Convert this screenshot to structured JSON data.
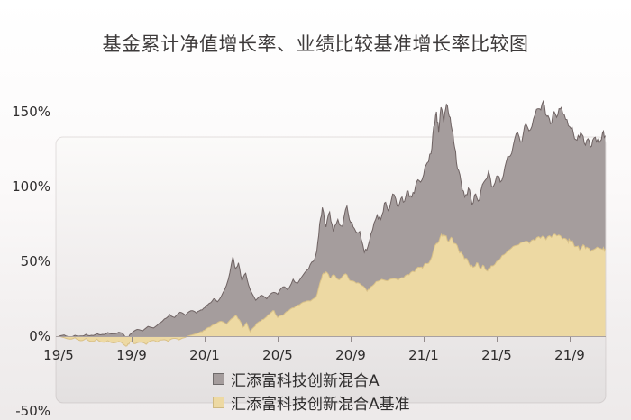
{
  "chart_data": {
    "type": "area",
    "title": "基金累计净值增长率、业绩比较基准增长率比较图",
    "legend_position": "bottom",
    "grid": false,
    "x_axis": {
      "unit": "year/month",
      "start": "2019/5",
      "end": "2021/11",
      "ticks": [
        {
          "m": 0,
          "label": "19/5"
        },
        {
          "m": 4,
          "label": "19/9"
        },
        {
          "m": 8,
          "label": "20/1"
        },
        {
          "m": 12,
          "label": "20/5"
        },
        {
          "m": 16,
          "label": "20/9"
        },
        {
          "m": 20,
          "label": "21/1"
        },
        {
          "m": 24,
          "label": "21/5"
        },
        {
          "m": 28,
          "label": "21/9"
        }
      ]
    },
    "y_axis": {
      "unit": "%",
      "range": [
        -50,
        160
      ],
      "ticks": [
        {
          "v": 150,
          "label": "150%"
        },
        {
          "v": 100,
          "label": "100%"
        },
        {
          "v": 50,
          "label": "50%"
        },
        {
          "v": 0,
          "label": "0%"
        },
        {
          "v": -50,
          "label": "-50%"
        }
      ]
    },
    "series": [
      {
        "name": "汇添富科技创新混合A",
        "color": "#a59d9d",
        "stroke": "#6f6363",
        "points": [
          [
            0,
            0
          ],
          [
            0.3,
            0.8
          ],
          [
            0.6,
            -0.6
          ],
          [
            0.9,
            0.6
          ],
          [
            1.2,
            0.2
          ],
          [
            1.5,
            1.2
          ],
          [
            1.8,
            0.6
          ],
          [
            2.1,
            1.8
          ],
          [
            2.4,
            1.2
          ],
          [
            2.7,
            2.4
          ],
          [
            3.0,
            1.6
          ],
          [
            3.3,
            2.6
          ],
          [
            3.55,
            1.2
          ],
          [
            3.75,
            -1.5
          ],
          [
            3.9,
            1.0
          ],
          [
            4.0,
            2.0
          ],
          [
            4.3,
            4.5
          ],
          [
            4.6,
            3.5
          ],
          [
            4.9,
            6.5
          ],
          [
            5.2,
            5.5
          ],
          [
            5.5,
            8.5
          ],
          [
            5.8,
            11.5
          ],
          [
            6.1,
            14.5
          ],
          [
            6.35,
            12.5
          ],
          [
            6.65,
            16.0
          ],
          [
            6.95,
            14.0
          ],
          [
            7.25,
            17.0
          ],
          [
            7.55,
            15.5
          ],
          [
            7.8,
            17.5
          ],
          [
            8.0,
            19.0
          ],
          [
            8.25,
            22.0
          ],
          [
            8.5,
            25.0
          ],
          [
            8.7,
            23.0
          ],
          [
            9.0,
            29.0
          ],
          [
            9.3,
            38.0
          ],
          [
            9.55,
            53.0
          ],
          [
            9.7,
            45.0
          ],
          [
            9.85,
            49.0
          ],
          [
            10.05,
            37.0
          ],
          [
            10.25,
            42.0
          ],
          [
            10.5,
            31.0
          ],
          [
            10.8,
            24.0
          ],
          [
            11.1,
            27.5
          ],
          [
            11.4,
            25.0
          ],
          [
            11.7,
            29.0
          ],
          [
            12.0,
            28.0
          ],
          [
            12.3,
            33.0
          ],
          [
            12.55,
            31.0
          ],
          [
            12.85,
            38.0
          ],
          [
            13.1,
            35.5
          ],
          [
            13.4,
            41.0
          ],
          [
            13.7,
            45.0
          ],
          [
            13.95,
            50.0
          ],
          [
            14.15,
            57.0
          ],
          [
            14.3,
            75.0
          ],
          [
            14.45,
            86.0
          ],
          [
            14.65,
            73.0
          ],
          [
            14.85,
            83.0
          ],
          [
            15.05,
            70.0
          ],
          [
            15.3,
            78.0
          ],
          [
            15.55,
            73.5
          ],
          [
            15.8,
            87.0
          ],
          [
            16.0,
            76.0
          ],
          [
            16.2,
            72.0
          ],
          [
            16.5,
            70.0
          ],
          [
            16.75,
            56.0
          ],
          [
            16.95,
            60.0
          ],
          [
            17.2,
            71.0
          ],
          [
            17.45,
            81.0
          ],
          [
            17.65,
            78.0
          ],
          [
            17.85,
            89.0
          ],
          [
            18.05,
            84.0
          ],
          [
            18.3,
            95.0
          ],
          [
            18.55,
            87.0
          ],
          [
            18.75,
            92.0
          ],
          [
            18.95,
            90.0
          ],
          [
            19.15,
            97.0
          ],
          [
            19.35,
            93.0
          ],
          [
            19.55,
            100.0
          ],
          [
            19.75,
            104.0
          ],
          [
            20.0,
            108.0
          ],
          [
            20.2,
            116.0
          ],
          [
            20.4,
            122.0
          ],
          [
            20.55,
            140.0
          ],
          [
            20.7,
            150.0
          ],
          [
            20.82,
            136.0
          ],
          [
            20.95,
            153.0
          ],
          [
            21.1,
            143.0
          ],
          [
            21.25,
            155.0
          ],
          [
            21.4,
            147.0
          ],
          [
            21.55,
            138.0
          ],
          [
            21.7,
            126.0
          ],
          [
            21.85,
            112.0
          ],
          [
            22.05,
            103.0
          ],
          [
            22.25,
            93.0
          ],
          [
            22.45,
            99.0
          ],
          [
            22.65,
            88.0
          ],
          [
            22.85,
            95.0
          ],
          [
            23.05,
            91.0
          ],
          [
            23.3,
            103.0
          ],
          [
            23.55,
            110.0
          ],
          [
            23.72,
            100.0
          ],
          [
            24.0,
            107.0
          ],
          [
            24.2,
            103.0
          ],
          [
            24.45,
            113.0
          ],
          [
            24.68,
            120.0
          ],
          [
            24.9,
            127.0
          ],
          [
            25.15,
            136.0
          ],
          [
            25.38,
            130.0
          ],
          [
            25.6,
            142.0
          ],
          [
            25.85,
            138.0
          ],
          [
            26.1,
            148.0
          ],
          [
            26.35,
            152.0
          ],
          [
            26.55,
            157.0
          ],
          [
            26.75,
            147.0
          ],
          [
            26.95,
            142.0
          ],
          [
            27.15,
            150.0
          ],
          [
            27.35,
            148.0
          ],
          [
            27.55,
            153.0
          ],
          [
            27.78,
            145.0
          ],
          [
            28.0,
            140.0
          ],
          [
            28.2,
            136.0
          ],
          [
            28.4,
            131.0
          ],
          [
            28.6,
            136.0
          ],
          [
            28.8,
            129.0
          ],
          [
            29.0,
            132.0
          ],
          [
            29.2,
            127.0
          ],
          [
            29.4,
            133.0
          ],
          [
            29.6,
            129.0
          ],
          [
            29.8,
            136.0
          ],
          [
            29.95,
            134.0
          ]
        ]
      },
      {
        "name": "汇添富科技创新混合A基准",
        "color": "#edd9a3",
        "stroke": "#d9c188",
        "points": [
          [
            0,
            0
          ],
          [
            0.3,
            -1.0
          ],
          [
            0.6,
            -2.0
          ],
          [
            0.9,
            -1.0
          ],
          [
            1.2,
            -3.0
          ],
          [
            1.5,
            -1.5
          ],
          [
            1.8,
            -3.5
          ],
          [
            2.1,
            -2.0
          ],
          [
            2.4,
            -4.0
          ],
          [
            2.7,
            -3.0
          ],
          [
            3.0,
            -4.5
          ],
          [
            3.3,
            -3.5
          ],
          [
            3.55,
            -5.5
          ],
          [
            3.75,
            -6.5
          ],
          [
            3.9,
            -4.0
          ],
          [
            4.0,
            -3.5
          ],
          [
            4.2,
            -5.0
          ],
          [
            4.5,
            -4.0
          ],
          [
            4.8,
            -5.5
          ],
          [
            5.1,
            -3.0
          ],
          [
            5.4,
            -4.0
          ],
          [
            5.7,
            -2.5
          ],
          [
            6.0,
            -3.5
          ],
          [
            6.3,
            -1.5
          ],
          [
            6.6,
            -2.5
          ],
          [
            6.9,
            -1.0
          ],
          [
            7.2,
            0.5
          ],
          [
            7.5,
            1.5
          ],
          [
            7.8,
            3.0
          ],
          [
            8.0,
            4.0
          ],
          [
            8.3,
            6.0
          ],
          [
            8.6,
            8.0
          ],
          [
            8.9,
            10.0
          ],
          [
            9.2,
            8.0
          ],
          [
            9.5,
            12.0
          ],
          [
            9.7,
            14.0
          ],
          [
            9.9,
            11.0
          ],
          [
            10.1,
            6.0
          ],
          [
            10.3,
            9.0
          ],
          [
            10.5,
            3.0
          ],
          [
            10.7,
            6.0
          ],
          [
            10.9,
            9.0
          ],
          [
            11.15,
            11.0
          ],
          [
            11.4,
            13.0
          ],
          [
            11.6,
            15.5
          ],
          [
            11.8,
            17.0
          ],
          [
            12.0,
            12.5
          ],
          [
            12.3,
            14.0
          ],
          [
            12.6,
            17.0
          ],
          [
            12.9,
            19.0
          ],
          [
            13.2,
            21.0
          ],
          [
            13.5,
            23.0
          ],
          [
            13.8,
            23.5
          ],
          [
            14.1,
            26.0
          ],
          [
            14.3,
            35.0
          ],
          [
            14.45,
            41.0
          ],
          [
            14.65,
            43.0
          ],
          [
            14.85,
            39.0
          ],
          [
            15.05,
            41.0
          ],
          [
            15.3,
            38.0
          ],
          [
            15.55,
            40.0
          ],
          [
            15.8,
            41.0
          ],
          [
            16.0,
            37.0
          ],
          [
            16.3,
            35.5
          ],
          [
            16.6,
            34.0
          ],
          [
            16.9,
            30.0
          ],
          [
            17.1,
            33.0
          ],
          [
            17.4,
            36.5
          ],
          [
            17.7,
            38.0
          ],
          [
            18.0,
            37.0
          ],
          [
            18.3,
            38.5
          ],
          [
            18.6,
            37.5
          ],
          [
            18.9,
            39.0
          ],
          [
            19.2,
            41.0
          ],
          [
            19.5,
            43.0
          ],
          [
            19.8,
            46.0
          ],
          [
            20.0,
            47.0
          ],
          [
            20.2,
            48.5
          ],
          [
            20.45,
            53.0
          ],
          [
            20.7,
            62.0
          ],
          [
            20.9,
            66.0
          ],
          [
            21.1,
            68.0
          ],
          [
            21.3,
            64.0
          ],
          [
            21.5,
            66.0
          ],
          [
            21.7,
            62.0
          ],
          [
            21.9,
            58.0
          ],
          [
            22.1,
            55.0
          ],
          [
            22.3,
            52.0
          ],
          [
            22.5,
            48.0
          ],
          [
            22.7,
            46.0
          ],
          [
            22.9,
            49.0
          ],
          [
            23.1,
            45.0
          ],
          [
            23.3,
            47.0
          ],
          [
            23.5,
            43.5
          ],
          [
            23.7,
            47.0
          ],
          [
            24.0,
            50.0
          ],
          [
            24.3,
            54.0
          ],
          [
            24.6,
            57.0
          ],
          [
            24.9,
            60.0
          ],
          [
            25.2,
            61.0
          ],
          [
            25.5,
            63.0
          ],
          [
            25.8,
            62.0
          ],
          [
            26.1,
            64.0
          ],
          [
            26.4,
            65.5
          ],
          [
            26.7,
            64.5
          ],
          [
            27.0,
            66.0
          ],
          [
            27.3,
            67.0
          ],
          [
            27.6,
            65.0
          ],
          [
            27.9,
            63.5
          ],
          [
            28.0,
            64.0
          ],
          [
            28.2,
            62.0
          ],
          [
            28.4,
            60.0
          ],
          [
            28.6,
            58.0
          ],
          [
            28.8,
            60.5
          ],
          [
            29.0,
            59.0
          ],
          [
            29.2,
            57.5
          ],
          [
            29.5,
            59.5
          ],
          [
            29.8,
            58.0
          ],
          [
            29.95,
            58.5
          ]
        ]
      }
    ]
  }
}
